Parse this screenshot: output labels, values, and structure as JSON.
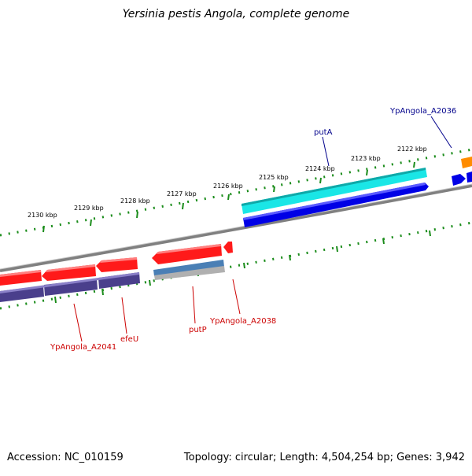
{
  "title": "Yersinia pestis Angola, complete genome",
  "footer": {
    "accession": "Accession: NC_010159",
    "summary": "Topology: circular; Length: 4,504,254 bp; Genes: 3,942"
  },
  "scale_ticks": [
    "2122 kbp",
    "2123 kbp",
    "2124 kbp",
    "2125 kbp",
    "2126 kbp",
    "2127 kbp",
    "2128 kbp",
    "2129 kbp",
    "2130 kbp"
  ],
  "gene_labels": {
    "putA": "putA",
    "a2036": "YpAngola_A2036",
    "a2041": "YpAngola_A2041",
    "efeU": "efeU",
    "putP": "putP",
    "a2038": "YpAngola_A2038"
  },
  "colors": {
    "cds_red": "#ff1a1a",
    "cds_blue": "#0000e6",
    "cyan": "#1ae6e6",
    "cog_purple": "#4a3f8c",
    "orange": "#ff8c00",
    "backbone": "#808080",
    "tick_green": "#1a8c1a",
    "label_blue": "#00008b",
    "label_red": "#cc0000"
  }
}
